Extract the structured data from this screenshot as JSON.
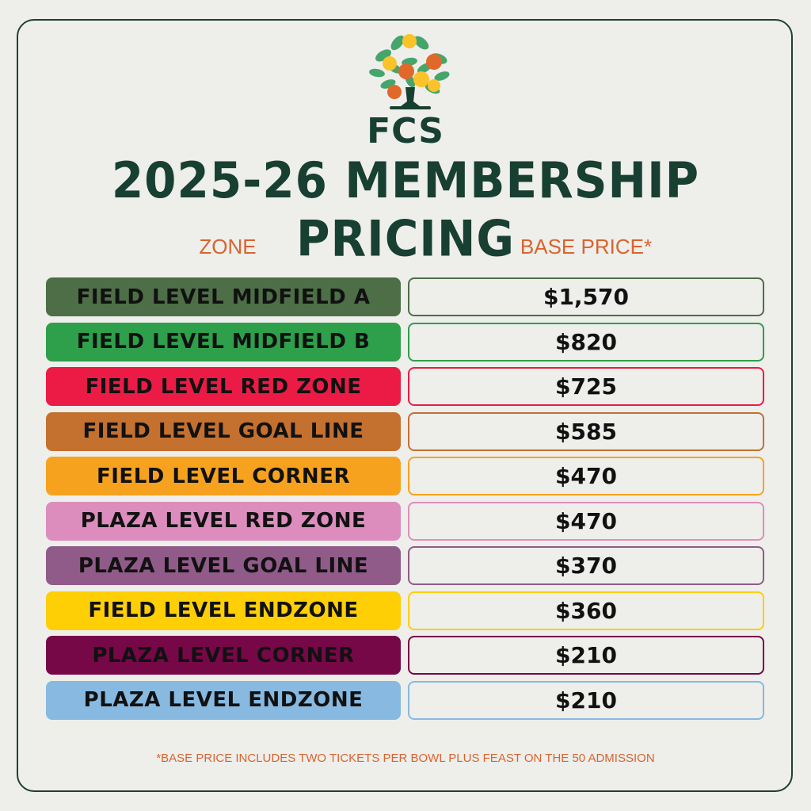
{
  "brand": "FCS",
  "title": "2025-26 MEMBERSHIP PRICING",
  "headers": {
    "zone": "ZONE",
    "price": "BASE PRICE*"
  },
  "rows": [
    {
      "zone": "FIELD LEVEL MIDFIELD A",
      "price": "$1,570",
      "color": "#4d6e47"
    },
    {
      "zone": "FIELD LEVEL MIDFIELD B",
      "price": "$820",
      "color": "#2e9f4b"
    },
    {
      "zone": "FIELD LEVEL RED ZONE",
      "price": "$725",
      "color": "#ec1b45"
    },
    {
      "zone": "FIELD LEVEL GOAL LINE",
      "price": "$585",
      "color": "#c4702f"
    },
    {
      "zone": "FIELD LEVEL CORNER",
      "price": "$470",
      "color": "#f7a21f"
    },
    {
      "zone": "PLAZA LEVEL RED ZONE",
      "price": "$470",
      "color": "#dd8dbd"
    },
    {
      "zone": "PLAZA LEVEL GOAL LINE",
      "price": "$370",
      "color": "#905b88"
    },
    {
      "zone": "FIELD LEVEL ENDZONE",
      "price": "$360",
      "color": "#ffcf05"
    },
    {
      "zone": "PLAZA LEVEL CORNER",
      "price": "$210",
      "color": "#760848"
    },
    {
      "zone": "PLAZA LEVEL ENDZONE",
      "price": "$210",
      "color": "#88b9e0"
    }
  ],
  "footnote": "*BASE PRICE INCLUDES TWO TICKETS PER BOWL PLUS FEAST ON THE 50 ADMISSION",
  "colors": {
    "brand": "#173f32",
    "accent": "#d8642e",
    "background": "#eeeeeb"
  },
  "logo_icon": "fruit-tree-icon"
}
